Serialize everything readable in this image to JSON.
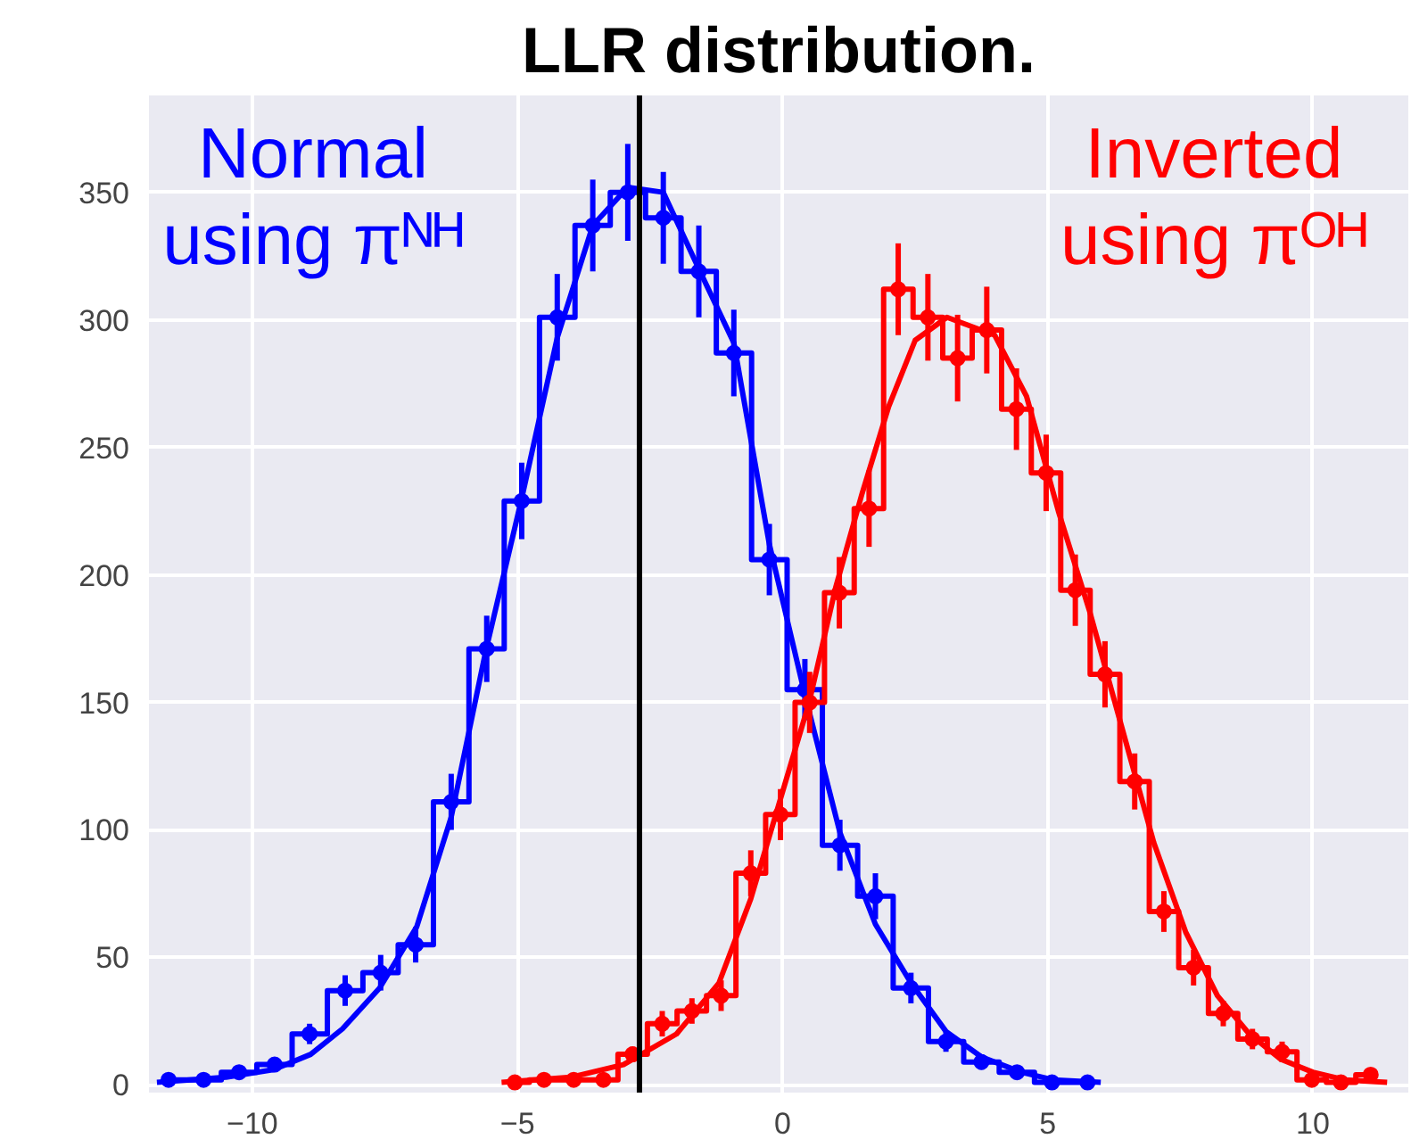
{
  "chart_data": {
    "type": "step",
    "title": "LLR distribution.",
    "xlim": [
      -11.95,
      11.8
    ],
    "ylim": [
      -3,
      388
    ],
    "xticks": [
      {
        "value": -10,
        "label": "−10"
      },
      {
        "value": -5,
        "label": "−5"
      },
      0,
      5,
      10
    ],
    "yticks": [
      0,
      50,
      100,
      150,
      200,
      250,
      300,
      350
    ],
    "grid": true,
    "ref_lines": [
      {
        "axis": "x",
        "value": -2.7,
        "color": "#000000"
      }
    ],
    "series": [
      {
        "type": "step",
        "name": "Normal\nusing πᴺᴴ",
        "color": "#0000ff",
        "x": [
          -11.58,
          -10.92,
          -10.25,
          -9.58,
          -8.92,
          -8.25,
          -7.58,
          -6.92,
          -6.25,
          -5.58,
          -4.92,
          -4.25,
          -3.58,
          -2.92,
          -2.25,
          -1.58,
          -0.92,
          -0.25,
          0.42,
          1.08,
          1.75,
          2.42,
          3.08,
          3.75,
          4.42,
          5.08,
          5.75
        ],
        "values": [
          2,
          2,
          5,
          8,
          20,
          37,
          44,
          55,
          111,
          171,
          229,
          301,
          337,
          350,
          340,
          319,
          287,
          206,
          155,
          94,
          74,
          38,
          17,
          9,
          5,
          1,
          1
        ]
      },
      {
        "type": "scatter",
        "color": "#0000ff",
        "marker": "circle",
        "x": [
          -11.58,
          -10.92,
          -10.25,
          -9.58,
          -8.92,
          -8.25,
          -7.58,
          -6.92,
          -6.25,
          -5.58,
          -4.92,
          -4.25,
          -3.58,
          -2.92,
          -2.25,
          -1.58,
          -0.92,
          -0.25,
          0.42,
          1.08,
          1.75,
          2.42,
          3.08,
          3.75,
          4.42,
          5.08,
          5.75
        ],
        "values": [
          2,
          2,
          5,
          8,
          20,
          37,
          44,
          55,
          111,
          171,
          229,
          301,
          337,
          350,
          340,
          319,
          287,
          206,
          155,
          94,
          74,
          38,
          17,
          9,
          5,
          1,
          1
        ],
        "errors": [
          1,
          1,
          2,
          3,
          4,
          6,
          7,
          7,
          11,
          13,
          15,
          17,
          18,
          19,
          18,
          18,
          17,
          14,
          12,
          10,
          9,
          6,
          4,
          3,
          2,
          1,
          1
        ]
      },
      {
        "type": "line",
        "color": "#0000ff",
        "x": [
          -11.8,
          -10.5,
          -9.6,
          -8.9,
          -8.3,
          -7.6,
          -6.9,
          -6.25,
          -5.6,
          -4.92,
          -4.25,
          -3.58,
          -2.92,
          -2.25,
          -1.58,
          -0.92,
          -0.25,
          0.42,
          1.08,
          1.75,
          2.42,
          3.08,
          3.75,
          4.5,
          5.1,
          6.0
        ],
        "values": [
          1,
          3,
          6,
          12,
          22,
          38,
          62,
          105,
          170,
          230,
          293,
          337,
          352,
          350,
          320,
          291,
          212,
          153,
          99,
          63,
          40,
          21,
          11,
          5,
          2,
          1
        ]
      },
      {
        "type": "step",
        "name": "Inverted\nusing πᴼᴴ",
        "color": "#ff0000",
        "x": [
          -5.05,
          -4.5,
          -3.94,
          -3.38,
          -2.83,
          -2.27,
          -1.71,
          -1.16,
          -0.6,
          -0.04,
          0.51,
          1.07,
          1.63,
          2.18,
          2.74,
          3.3,
          3.85,
          4.41,
          4.97,
          5.52,
          6.08,
          6.64,
          7.19,
          7.75,
          8.31,
          8.86,
          9.42,
          9.98,
          10.53,
          11.09
        ],
        "values": [
          1,
          2,
          2,
          2,
          12,
          24,
          29,
          35,
          83,
          106,
          150,
          193,
          226,
          312,
          301,
          285,
          296,
          265,
          240,
          194,
          161,
          119,
          68,
          46,
          28,
          18,
          13,
          2,
          1,
          4
        ]
      },
      {
        "type": "scatter",
        "color": "#ff0000",
        "marker": "circle",
        "x": [
          -5.05,
          -4.5,
          -3.94,
          -3.38,
          -2.83,
          -2.27,
          -1.71,
          -1.16,
          -0.6,
          -0.04,
          0.51,
          1.07,
          1.63,
          2.18,
          2.74,
          3.3,
          3.85,
          4.41,
          4.97,
          5.52,
          6.08,
          6.64,
          7.19,
          7.75,
          8.31,
          8.86,
          9.42,
          9.98,
          10.53,
          11.09
        ],
        "values": [
          1,
          2,
          2,
          2,
          12,
          24,
          29,
          35,
          83,
          106,
          150,
          193,
          226,
          312,
          301,
          285,
          296,
          265,
          240,
          194,
          161,
          119,
          68,
          46,
          28,
          18,
          13,
          2,
          1,
          4
        ],
        "errors": [
          1,
          1,
          1,
          1,
          3,
          5,
          5,
          6,
          9,
          10,
          12,
          14,
          15,
          18,
          17,
          17,
          17,
          16,
          15,
          14,
          13,
          11,
          8,
          7,
          5,
          4,
          4,
          1,
          1,
          2
        ]
      },
      {
        "type": "line",
        "color": "#ff0000",
        "x": [
          -5.3,
          -4.0,
          -3.0,
          -2.0,
          -1.2,
          -0.6,
          0.0,
          0.5,
          1.0,
          1.5,
          2.0,
          2.5,
          3.1,
          4.0,
          4.6,
          5.2,
          5.8,
          6.4,
          7.0,
          7.6,
          8.2,
          8.8,
          9.4,
          10.0,
          10.6,
          11.4
        ],
        "values": [
          1,
          3,
          8,
          20,
          40,
          73,
          115,
          150,
          195,
          232,
          266,
          292,
          301,
          294,
          270,
          225,
          185,
          140,
          95,
          60,
          35,
          20,
          10,
          5,
          2,
          1
        ]
      }
    ]
  }
}
